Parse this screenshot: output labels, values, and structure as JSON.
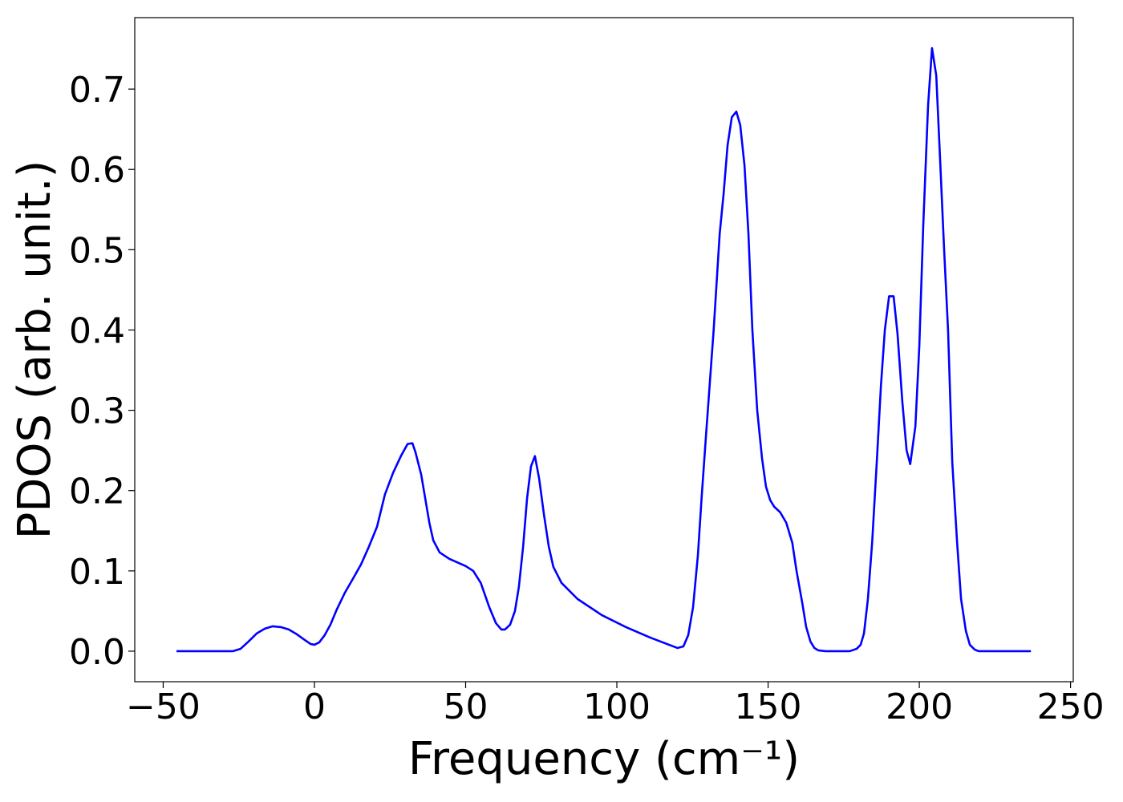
{
  "chart_data": {
    "type": "line",
    "xlabel": "Frequency (cm⁻¹)",
    "ylabel": "PDOS (arb. unit.)",
    "xlim": [
      -59.4,
      250.9
    ],
    "ylim": [
      -0.038,
      0.789
    ],
    "xticks": [
      {
        "value": -50,
        "label": "−50"
      },
      0,
      50,
      100,
      150,
      200,
      250
    ],
    "yticks": [
      {
        "value": 0,
        "label": "0.0"
      },
      0.1,
      0.2,
      0.3,
      0.4,
      0.5,
      0.6,
      0.7
    ],
    "grid": false,
    "series": [
      {
        "color": "#0000ff",
        "x": [
          -45.6,
          -27,
          -24.4,
          -21.8,
          -19.1,
          -16.4,
          -13.8,
          -11.1,
          -8.5,
          -5.8,
          -3.2,
          -1.3,
          0,
          1.6,
          3.4,
          5.3,
          7.4,
          10.1,
          12.7,
          15.4,
          18,
          20.7,
          23.3,
          26,
          28.6,
          30.8,
          32.4,
          33.4,
          35.3,
          38,
          39.3,
          41.4,
          44.6,
          50,
          52.5,
          55,
          57.8,
          60,
          61.8,
          63,
          64.7,
          66.3,
          67.6,
          69,
          70.3,
          71.6,
          72.9,
          74.3,
          75.9,
          77.5,
          79,
          81.7,
          87,
          95,
          103,
          111,
          120,
          122,
          123.6,
          125.2,
          126.8,
          128,
          129.4,
          132,
          134,
          135.3,
          136.6,
          138,
          139.5,
          140.8,
          142.2,
          143.5,
          144.8,
          146.4,
          148,
          149.3,
          150.7,
          152,
          154,
          156,
          158,
          159.4,
          161.3,
          162.6,
          164,
          165.3,
          166.6,
          169,
          177,
          179.3,
          180.6,
          181.7,
          183,
          184.4,
          186,
          187.3,
          188.6,
          190,
          191.5,
          192.8,
          194.4,
          195.8,
          197,
          198.7,
          200,
          201.3,
          202.9,
          204.2,
          205.6,
          206.9,
          208.2,
          209.5,
          210.9,
          212.5,
          213.8,
          215.4,
          216.7,
          218.3,
          219.6,
          236.9
        ],
        "values": [
          0,
          0,
          0.003,
          0.012,
          0.022,
          0.028,
          0.031,
          0.03,
          0.027,
          0.021,
          0.014,
          0.009,
          0.008,
          0.011,
          0.02,
          0.033,
          0.052,
          0.073,
          0.09,
          0.108,
          0.13,
          0.155,
          0.195,
          0.222,
          0.243,
          0.258,
          0.259,
          0.248,
          0.22,
          0.16,
          0.138,
          0.123,
          0.115,
          0.106,
          0.1,
          0.085,
          0.055,
          0.035,
          0.027,
          0.027,
          0.033,
          0.05,
          0.08,
          0.13,
          0.19,
          0.23,
          0.243,
          0.215,
          0.17,
          0.13,
          0.105,
          0.085,
          0.065,
          0.045,
          0.03,
          0.017,
          0.004,
          0.006,
          0.02,
          0.055,
          0.12,
          0.19,
          0.265,
          0.4,
          0.52,
          0.57,
          0.63,
          0.665,
          0.672,
          0.655,
          0.605,
          0.52,
          0.4,
          0.3,
          0.24,
          0.205,
          0.188,
          0.18,
          0.173,
          0.16,
          0.135,
          0.1,
          0.06,
          0.03,
          0.012,
          0.004,
          0.001,
          0,
          0,
          0.003,
          0.008,
          0.022,
          0.065,
          0.135,
          0.24,
          0.33,
          0.4,
          0.442,
          0.442,
          0.395,
          0.31,
          0.25,
          0.233,
          0.28,
          0.38,
          0.53,
          0.68,
          0.751,
          0.717,
          0.61,
          0.5,
          0.4,
          0.235,
          0.135,
          0.065,
          0.025,
          0.008,
          0.002,
          0,
          0
        ]
      }
    ]
  }
}
